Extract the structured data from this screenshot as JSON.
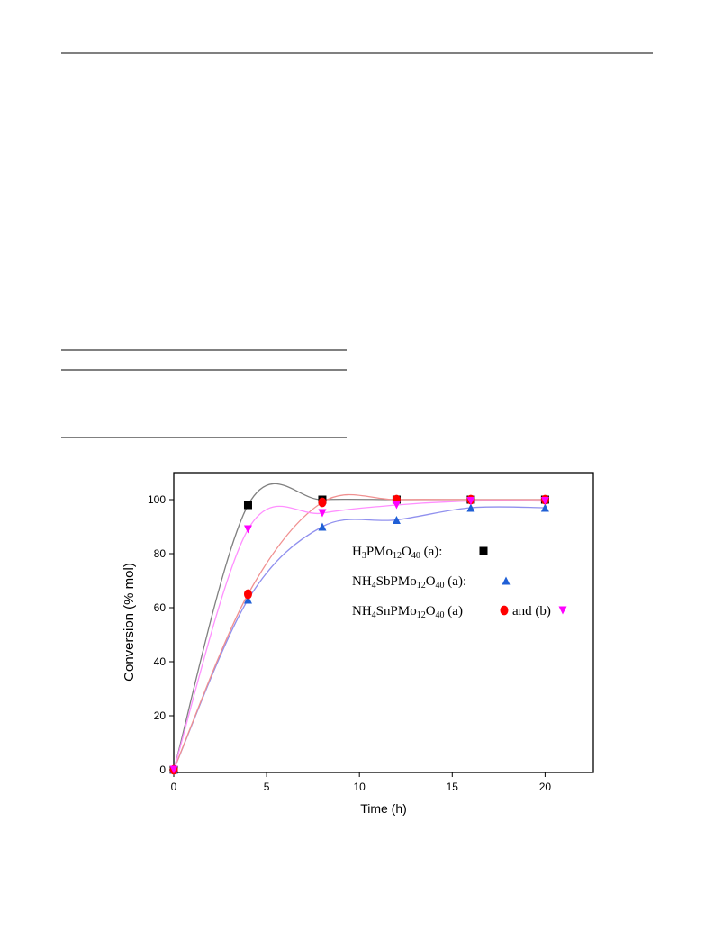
{
  "chart_data": {
    "type": "line",
    "xlabel": "Time (h)",
    "ylabel": "Conversion (% mol)",
    "xlim": [
      0,
      22.6
    ],
    "ylim": [
      -1,
      110
    ],
    "xticks": [
      0,
      5,
      10,
      15,
      20
    ],
    "yticks": [
      0,
      20,
      40,
      60,
      80,
      100
    ],
    "x": [
      0,
      4,
      8,
      12,
      16,
      20
    ],
    "series": [
      {
        "name": "H3PMo12O40 (a):",
        "color": "#000000",
        "line_color": "#808080",
        "marker": "square",
        "values": [
          0,
          98,
          100,
          100,
          100,
          100
        ]
      },
      {
        "name": "NH4SbPMo12O40 (a):",
        "color": "#1f5fd6",
        "line_color": "#9090ee",
        "marker": "triangle",
        "values": [
          0,
          63,
          90,
          92.5,
          97,
          97
        ]
      },
      {
        "name": "NH4SnPMo12O40 (a)",
        "color": "#ff0000",
        "line_color": "#f09090",
        "marker": "circle",
        "values": [
          0,
          65,
          99,
          100,
          100,
          100
        ]
      },
      {
        "name": "and (b)",
        "color": "#ff00ff",
        "line_color": "#ff90ff",
        "marker": "triangle-down",
        "values": [
          0,
          89,
          95,
          98,
          99.5,
          99.5
        ]
      }
    ]
  }
}
